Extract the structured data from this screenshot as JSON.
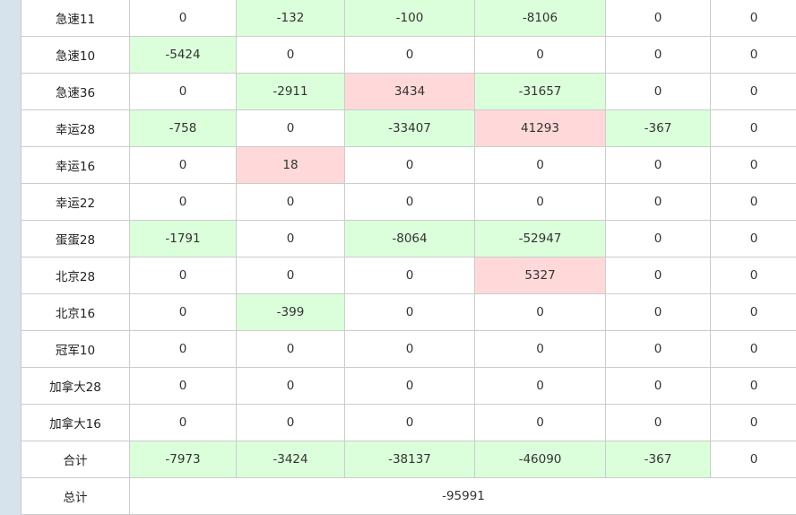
{
  "colors": {
    "sidebar": "#d6e2ec",
    "negative_highlight": "#dbffdb",
    "positive_highlight": "#ffd9d9",
    "border": "#cccccc"
  },
  "rows": [
    {
      "name": "急速11",
      "values": [
        "0",
        "-132",
        "-100",
        "-8106",
        "0",
        "0"
      ]
    },
    {
      "name": "急速10",
      "values": [
        "-5424",
        "0",
        "0",
        "0",
        "0",
        "0"
      ]
    },
    {
      "name": "急速36",
      "values": [
        "0",
        "-2911",
        "3434",
        "-31657",
        "0",
        "0"
      ]
    },
    {
      "name": "幸运28",
      "values": [
        "-758",
        "0",
        "-33407",
        "41293",
        "-367",
        "0"
      ]
    },
    {
      "name": "幸运16",
      "values": [
        "0",
        "18",
        "0",
        "0",
        "0",
        "0"
      ]
    },
    {
      "name": "幸运22",
      "values": [
        "0",
        "0",
        "0",
        "0",
        "0",
        "0"
      ]
    },
    {
      "name": "蛋蛋28",
      "values": [
        "-1791",
        "0",
        "-8064",
        "-52947",
        "0",
        "0"
      ]
    },
    {
      "name": "北京28",
      "values": [
        "0",
        "0",
        "0",
        "5327",
        "0",
        "0"
      ]
    },
    {
      "name": "北京16",
      "values": [
        "0",
        "-399",
        "0",
        "0",
        "0",
        "0"
      ]
    },
    {
      "name": "冠军10",
      "values": [
        "0",
        "0",
        "0",
        "0",
        "0",
        "0"
      ]
    },
    {
      "name": "加拿大28",
      "values": [
        "0",
        "0",
        "0",
        "0",
        "0",
        "0"
      ]
    },
    {
      "name": "加拿大16",
      "values": [
        "0",
        "0",
        "0",
        "0",
        "0",
        "0"
      ]
    },
    {
      "name": "合计",
      "values": [
        "-7973",
        "-3424",
        "-38137",
        "-46090",
        "-367",
        "0"
      ]
    }
  ],
  "grand_total": {
    "label": "总计",
    "value": "-95991"
  }
}
